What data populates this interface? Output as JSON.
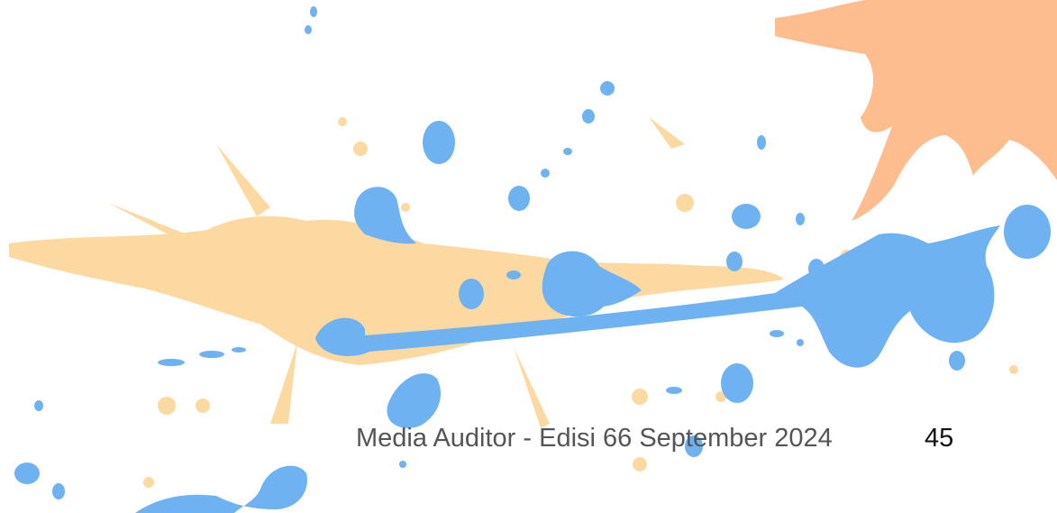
{
  "footer": {
    "text": "Media Auditor - Edisi 66 September 2024",
    "page_number": "45"
  }
}
